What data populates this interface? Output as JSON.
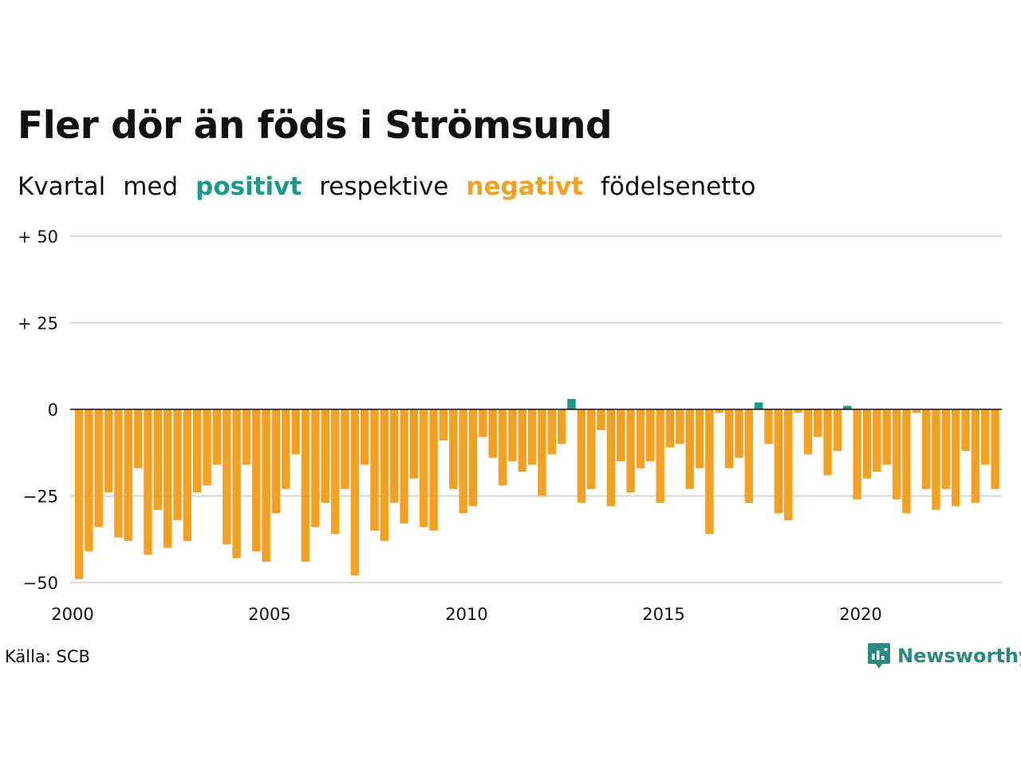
{
  "title": "Fler dör än föds i Strömsund",
  "subtitle": {
    "lead": "Kvartal",
    "word2": "med",
    "positive": "positivt",
    "word4": "respektive",
    "negative": "negativt",
    "word6": "födelsenetto"
  },
  "source": "Källa: SCB",
  "brand": "Newsworthy",
  "colors": {
    "positive": "#1a9a8a",
    "negative": "#f5a020",
    "grid": "#dddddd",
    "zero_line": "#111111",
    "brand": "#2a8a80"
  },
  "chart_data": {
    "type": "bar",
    "title": "Fler dör än föds i Strömsund",
    "xlabel": "",
    "ylabel": "",
    "ylim": [
      -50,
      50
    ],
    "grid": true,
    "yticks": [
      50,
      25,
      0,
      -25,
      -50
    ],
    "ytick_labels": [
      "+ 50",
      "+ 25",
      "0",
      "−25",
      "−50"
    ],
    "xticks": [
      "2000",
      "2005",
      "2010",
      "2015",
      "2020"
    ],
    "start_period": "2000 Q1",
    "series": [
      {
        "values": [
          -49,
          -41,
          -34,
          -24,
          -37,
          -38,
          -17,
          -42,
          -29,
          -40,
          -32,
          -38,
          -24,
          -22,
          -16,
          -39,
          -43,
          -16,
          -41,
          -44,
          -30,
          -23,
          -13,
          -44,
          -34,
          -27,
          -36,
          -23,
          -48,
          -16,
          -35,
          -38,
          -27,
          -33,
          -20,
          -34,
          -35,
          -9,
          -23,
          -30,
          -28,
          -8,
          -14,
          -22,
          -15,
          -18,
          -16,
          -25,
          -13,
          -10,
          3,
          -27,
          -23,
          -6,
          -28,
          -15,
          -24,
          -17,
          -15,
          -27,
          -11,
          -10,
          -23,
          -17,
          -36,
          -1,
          -17,
          -14,
          -27,
          2,
          -10,
          -30,
          -32,
          -1,
          -13,
          -8,
          -19,
          -12,
          1,
          -26,
          -20,
          -18,
          -16,
          -26,
          -30,
          -1,
          -23,
          -29,
          -23,
          -28,
          -12,
          -27,
          -16,
          -23
        ]
      }
    ]
  }
}
